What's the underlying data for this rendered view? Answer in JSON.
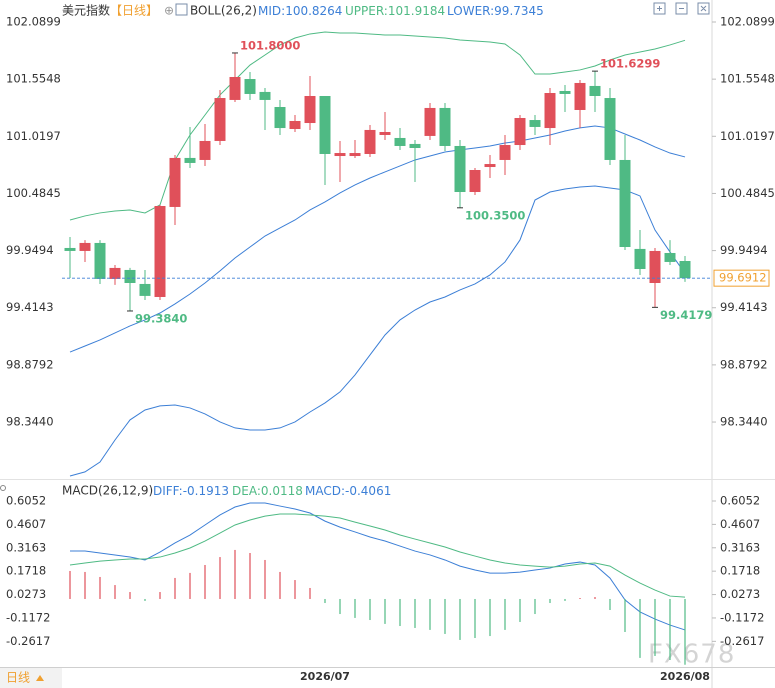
{
  "chart_data": [
    {
      "type": "candlestick",
      "title": "美元指数",
      "period": "【日线】",
      "indicator": "BOLL(26,2)",
      "up_color": "#e0505a",
      "down_color": "#4fba84",
      "last_price_color": "#f0a030",
      "grid": false,
      "categories": [
        null,
        null,
        null,
        null,
        null,
        null,
        null,
        null,
        null,
        null,
        null,
        null,
        null,
        null,
        null,
        null,
        null,
        "2026/07",
        null,
        null,
        null,
        null,
        null,
        null,
        null,
        null,
        null,
        null,
        null,
        null,
        null,
        null,
        null,
        null,
        null,
        null,
        null,
        null,
        null,
        null,
        null,
        "2026/08"
      ],
      "open": [
        99.974,
        99.946,
        100.021,
        99.684,
        99.768,
        99.637,
        99.515,
        100.358,
        100.817,
        100.798,
        100.976,
        101.36,
        101.556,
        101.435,
        101.294,
        101.088,
        101.144,
        101.397,
        100.835,
        100.835,
        100.854,
        101.032,
        101.004,
        100.948,
        101.023,
        101.285,
        100.929,
        100.498,
        100.732,
        100.798,
        100.938,
        101.172,
        101.097,
        101.444,
        101.266,
        101.491,
        101.378,
        100.798,
        99.965,
        99.646,
        99.927,
        99.852
      ],
      "high": [
        100.077,
        100.048,
        100.048,
        99.815,
        99.787,
        99.768,
        100.377,
        100.845,
        101.107,
        101.135,
        101.453,
        101.8,
        101.622,
        101.472,
        101.36,
        101.219,
        101.584,
        101.397,
        100.976,
        100.985,
        101.126,
        101.247,
        101.097,
        100.985,
        101.332,
        101.332,
        100.985,
        100.723,
        100.845,
        101.032,
        101.219,
        101.219,
        101.472,
        101.5,
        101.547,
        101.6299,
        101.472,
        101.032,
        100.142,
        99.974,
        100.048,
        99.899
      ],
      "low": [
        99.693,
        99.843,
        99.637,
        99.628,
        99.384,
        99.487,
        99.487,
        100.189,
        100.723,
        100.742,
        100.938,
        101.341,
        101.36,
        101.079,
        101.032,
        101.06,
        101.079,
        100.564,
        100.592,
        100.817,
        100.826,
        100.985,
        100.891,
        100.592,
        100.985,
        100.882,
        100.35,
        100.47,
        100.629,
        100.657,
        100.891,
        101.032,
        100.938,
        101.247,
        101.097,
        101.247,
        100.751,
        99.955,
        99.721,
        99.4179,
        99.815,
        99.656
      ],
      "close": [
        99.946,
        100.021,
        99.684,
        99.787,
        99.646,
        99.525,
        100.367,
        100.817,
        100.77,
        100.976,
        101.378,
        101.575,
        101.416,
        101.36,
        101.097,
        101.163,
        101.397,
        100.854,
        100.863,
        100.863,
        101.079,
        101.06,
        100.929,
        100.91,
        101.285,
        100.929,
        100.498,
        100.704,
        100.76,
        100.938,
        101.191,
        101.107,
        101.425,
        101.416,
        101.519,
        101.397,
        100.798,
        99.983,
        99.777,
        99.946,
        99.843,
        99.6912
      ],
      "series": [
        {
          "name": "MID:",
          "color": "#3c7fd6",
          "values": [
            98.999,
            99.056,
            99.113,
            99.178,
            99.244,
            99.3,
            99.365,
            99.45,
            99.543,
            99.646,
            99.759,
            99.88,
            99.983,
            100.086,
            100.161,
            100.236,
            100.33,
            100.405,
            100.489,
            100.564,
            100.629,
            100.686,
            100.742,
            100.798,
            100.835,
            100.873,
            100.892,
            100.91,
            100.929,
            100.957,
            100.976,
            101.004,
            101.032,
            101.069,
            101.098,
            101.116,
            101.098,
            101.041,
            100.985,
            100.92,
            100.863,
            100.8264
          ]
        },
        {
          "name": "UPPER:",
          "color": "#4fba84",
          "values": [
            100.236,
            100.274,
            100.302,
            100.32,
            100.33,
            100.302,
            100.377,
            100.798,
            101.032,
            101.219,
            101.407,
            101.547,
            101.687,
            101.781,
            101.875,
            101.94,
            101.978,
            101.996,
            101.987,
            101.987,
            101.978,
            101.968,
            101.968,
            101.959,
            101.95,
            101.94,
            101.921,
            101.912,
            101.903,
            101.884,
            101.781,
            101.603,
            101.603,
            101.622,
            101.641,
            101.678,
            101.734,
            101.781,
            101.809,
            101.837,
            101.875,
            101.9184
          ]
        },
        {
          "name": "LOWER:",
          "color": "#3c7fd6",
          "values": [
            97.839,
            97.877,
            97.97,
            98.176,
            98.364,
            98.457,
            98.495,
            98.504,
            98.476,
            98.42,
            98.345,
            98.289,
            98.27,
            98.27,
            98.289,
            98.345,
            98.438,
            98.523,
            98.626,
            98.785,
            98.972,
            99.159,
            99.3,
            99.393,
            99.468,
            99.515,
            99.581,
            99.637,
            99.721,
            99.843,
            100.049,
            100.423,
            100.498,
            100.526,
            100.545,
            100.554,
            100.536,
            100.517,
            100.461,
            100.142,
            99.937,
            99.7345
          ]
        }
      ],
      "annotations": [
        {
          "value": 101.8,
          "label": "101.8000",
          "color": "#e0505a"
        },
        {
          "value": 99.384,
          "label": "99.3840",
          "color": "#4fba84"
        },
        {
          "value": 100.35,
          "label": "100.3500",
          "color": "#4fba84"
        },
        {
          "value": 101.6299,
          "label": "101.6299",
          "color": "#e0505a"
        },
        {
          "value": 99.4179,
          "label": "99.4179",
          "color": "#4fba84"
        }
      ],
      "ylim": [
        97.82,
        102.221
      ],
      "yticks": [
        102.0899,
        101.5548,
        101.0197,
        100.4845,
        99.9494,
        99.4143,
        98.8792,
        {
          "value": 98.344,
          "label": "98.3440"
        }
      ]
    },
    {
      "type": "macd",
      "title": "MACD(26,12,9)",
      "series": [
        {
          "name": "DIFF:",
          "color": "#3c7fd6",
          "values": [
            0.296,
            0.296,
            0.284,
            0.272,
            0.259,
            0.241,
            0.29,
            0.346,
            0.395,
            0.457,
            0.519,
            0.568,
            0.593,
            0.593,
            0.574,
            0.556,
            0.531,
            0.481,
            0.444,
            0.414,
            0.383,
            0.358,
            0.327,
            0.296,
            0.272,
            0.241,
            0.203,
            0.179,
            0.16,
            0.16,
            0.166,
            0.179,
            0.191,
            0.216,
            0.228,
            0.21,
            0.129,
            -0.006,
            -0.08,
            -0.124,
            -0.161,
            -0.1913
          ]
        },
        {
          "name": "DEA:",
          "color": "#4fba84",
          "values": [
            0.21,
            0.222,
            0.234,
            0.241,
            0.247,
            0.247,
            0.259,
            0.284,
            0.315,
            0.358,
            0.407,
            0.457,
            0.488,
            0.512,
            0.525,
            0.525,
            0.519,
            0.512,
            0.5,
            0.475,
            0.451,
            0.426,
            0.395,
            0.37,
            0.346,
            0.321,
            0.29,
            0.265,
            0.241,
            0.222,
            0.21,
            0.203,
            0.197,
            0.203,
            0.216,
            0.222,
            0.203,
            0.148,
            0.098,
            0.055,
            0.018,
            0.0118
          ]
        },
        {
          "name": "MACD:",
          "type": "bar",
          "color": "#e0505a",
          "negative_color": "#4fba84",
          "label_color": "#3c7fd6",
          "values": [
            0.173,
            0.167,
            0.136,
            0.086,
            0.043,
            -0.012,
            0.043,
            0.13,
            0.161,
            0.21,
            0.259,
            0.303,
            0.284,
            0.241,
            0.167,
            0.117,
            0.068,
            -0.025,
            -0.093,
            -0.117,
            -0.13,
            -0.154,
            -0.167,
            -0.179,
            -0.191,
            -0.216,
            -0.253,
            -0.241,
            -0.229,
            -0.191,
            -0.142,
            -0.093,
            -0.025,
            -0.012,
            0.006,
            0.012,
            -0.068,
            -0.204,
            -0.364,
            -0.352,
            -0.377,
            -0.4061
          ]
        }
      ],
      "ylim": [
        -0.4078,
        0.7164
      ],
      "yticks": [
        0.6052,
        0.4607,
        0.3163,
        0.1718,
        0.0273,
        -0.1172,
        -0.2617
      ]
    }
  ],
  "toolbar": {
    "period": "日线"
  },
  "watermark": "FX678"
}
